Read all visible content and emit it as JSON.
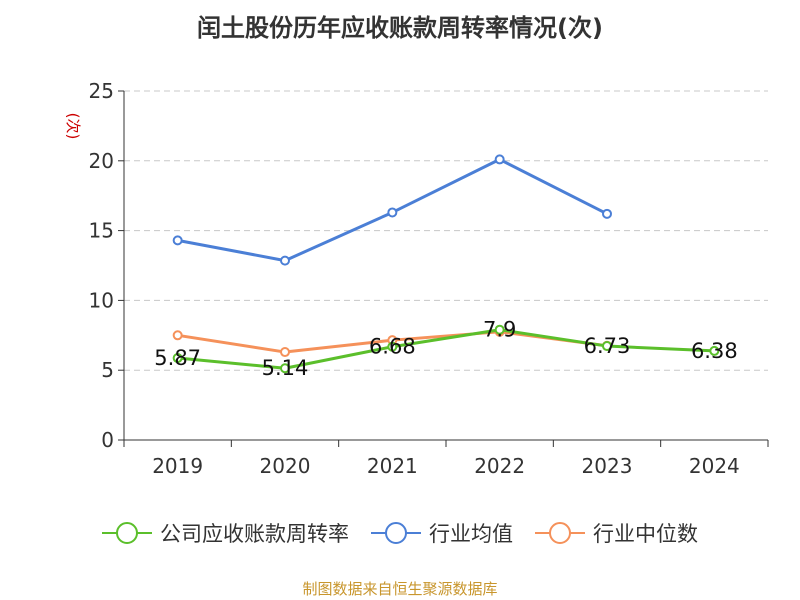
{
  "title": "闰土股份历年应收账款周转率情况(次)",
  "footer": "制图数据来自恒生聚源数据库",
  "chart_data": {
    "type": "line",
    "title": "闰土股份历年应收账款周转率情况(次)",
    "ylabel": "(次)",
    "xlabel": "",
    "categories": [
      "2019",
      "2020",
      "2021",
      "2022",
      "2023",
      "2024"
    ],
    "ylim": [
      0,
      25
    ],
    "yticks": [
      0,
      5,
      10,
      15,
      20,
      25
    ],
    "grid": true,
    "legend_position": "bottom",
    "series": [
      {
        "name": "公司应收账款周转率",
        "color": "#5bbf2b",
        "values": [
          5.87,
          5.14,
          6.68,
          7.9,
          6.73,
          6.38
        ],
        "data_labels": [
          "5.87",
          "5.14",
          "6.68",
          "7.9",
          "6.73",
          "6.38"
        ]
      },
      {
        "name": "行业均值",
        "color": "#4b7fd6",
        "values": [
          14.3,
          12.85,
          16.3,
          20.1,
          16.2,
          null
        ]
      },
      {
        "name": "行业中位数",
        "color": "#f5915a",
        "values": [
          7.5,
          6.3,
          7.15,
          7.75,
          6.75,
          null
        ]
      }
    ]
  }
}
